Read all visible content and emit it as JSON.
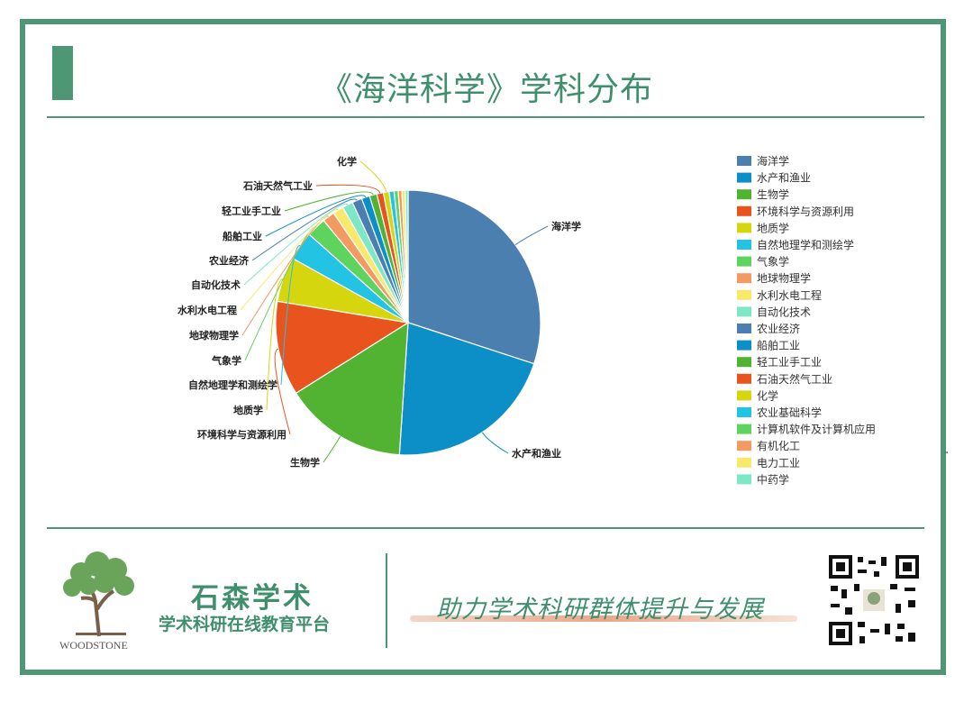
{
  "page": {
    "title": "《海洋科学》学科分布",
    "brand_name": "石森学术",
    "brand_subtitle": "学术科研在线教育平台",
    "brand_logo_text": "WOODSTONE",
    "slogan": "助力学术科研群体提升与发展",
    "accent_color": "#4e9775"
  },
  "chart_data": {
    "type": "pie",
    "title": "",
    "legend_position": "right",
    "slices": [
      {
        "label": "海洋学",
        "value": 30,
        "color": "#4a7fb0"
      },
      {
        "label": "水产和渔业",
        "value": 21,
        "color": "#0c8ec7"
      },
      {
        "label": "生物学",
        "value": 15,
        "color": "#52b332"
      },
      {
        "label": "环境科学与资源利用",
        "value": 11.5,
        "color": "#e9541e"
      },
      {
        "label": "地质学",
        "value": 5.5,
        "color": "#d6d60f"
      },
      {
        "label": "自然地理学和测绘学",
        "value": 3.5,
        "color": "#22c3e3"
      },
      {
        "label": "气象学",
        "value": 2.4,
        "color": "#5ed35e"
      },
      {
        "label": "地球物理学",
        "value": 1.5,
        "color": "#f39a63"
      },
      {
        "label": "水利水电工程",
        "value": 1.3,
        "color": "#f9e96b"
      },
      {
        "label": "自动化技术",
        "value": 1.3,
        "color": "#7ee8c6"
      },
      {
        "label": "农业经济",
        "value": 1.2,
        "color": "#4a7fb0"
      },
      {
        "label": "船舶工业",
        "value": 1.0,
        "color": "#0c8ec7"
      },
      {
        "label": "轻工业手工业",
        "value": 0.9,
        "color": "#52b332"
      },
      {
        "label": "石油天然气工业",
        "value": 0.8,
        "color": "#e9541e"
      },
      {
        "label": "化学",
        "value": 0.7,
        "color": "#d6d60f"
      },
      {
        "label": "农业基础科学",
        "value": 0.6,
        "color": "#22c3e3"
      },
      {
        "label": "计算机软件及计算机应用",
        "value": 0.5,
        "color": "#5ed35e"
      },
      {
        "label": "有机化工",
        "value": 0.45,
        "color": "#f39a63"
      },
      {
        "label": "电力工业",
        "value": 0.4,
        "color": "#f9e96b"
      },
      {
        "label": "中药学",
        "value": 0.35,
        "color": "#7ee8c6"
      }
    ],
    "outer_labels": [
      {
        "slice": 0,
        "text": "海洋学"
      },
      {
        "slice": 1,
        "text": "水产和渔业"
      },
      {
        "slice": 2,
        "text": "生物学"
      },
      {
        "slice": 3,
        "text": "环境科学与资源利用"
      },
      {
        "slice": 4,
        "text": "地质学"
      },
      {
        "slice": 5,
        "text": "自然地理学和测绘学"
      },
      {
        "slice": 6,
        "text": "气象学"
      },
      {
        "slice": 7,
        "text": "地球物理学"
      },
      {
        "slice": 8,
        "text": "水利水电工程"
      },
      {
        "slice": 9,
        "text": "自动化技术"
      },
      {
        "slice": 10,
        "text": "农业经济"
      },
      {
        "slice": 11,
        "text": "船舶工业"
      },
      {
        "slice": 12,
        "text": "轻工业手工业"
      },
      {
        "slice": 13,
        "text": "石油天然气工业"
      },
      {
        "slice": 14,
        "text": "化学"
      }
    ]
  }
}
